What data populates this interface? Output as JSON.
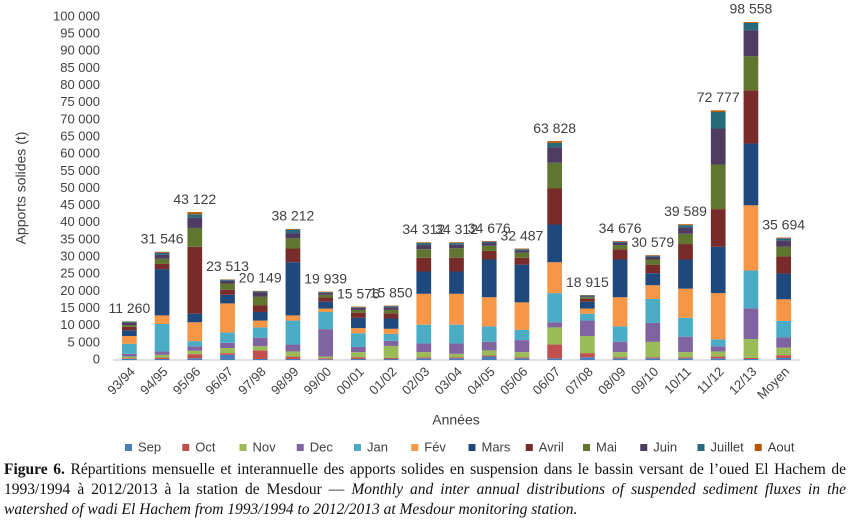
{
  "chart_data": {
    "type": "stacked_bar",
    "y_label": "Apports solides (t)",
    "x_label": "Années",
    "categories": [
      "93/94",
      "94/95",
      "95/96",
      "96/97",
      "97/98",
      "98/99",
      "99/00",
      "00/01",
      "01/02",
      "02/03",
      "03/04",
      "04/05",
      "05/06",
      "06/07",
      "07/08",
      "08/09",
      "09/10",
      "10/11",
      "11/12",
      "12/13",
      "Moyen"
    ],
    "ylim": [
      0,
      100000
    ],
    "yticks": [
      0,
      {
        "value": 5000,
        "label": "5 000"
      },
      {
        "value": 10000,
        "label": "10 000"
      },
      {
        "value": 15000,
        "label": "15 000"
      },
      {
        "value": 20000,
        "label": "20 000"
      },
      {
        "value": 25000,
        "label": "25 000"
      },
      {
        "value": 30000,
        "label": "30 000"
      },
      {
        "value": 35000,
        "label": "35 000"
      },
      {
        "value": 40000,
        "label": "40 000"
      },
      {
        "value": 45000,
        "label": "45 000"
      },
      {
        "value": 50000,
        "label": "50 000"
      },
      {
        "value": 55000,
        "label": "55 000"
      },
      {
        "value": 60000,
        "label": "60 000"
      },
      {
        "value": 65000,
        "label": "65 000"
      },
      {
        "value": 70000,
        "label": "70 000"
      },
      {
        "value": 75000,
        "label": "75 000"
      },
      {
        "value": 80000,
        "label": "80 000"
      },
      {
        "value": 85000,
        "label": "85 000"
      },
      {
        "value": 90000,
        "label": "90 000"
      },
      {
        "value": 95000,
        "label": "95 000"
      },
      {
        "value": 100000,
        "label": "100 000"
      }
    ],
    "totals": [
      11260,
      31546,
      43122,
      23513,
      20149,
      38212,
      19939,
      15576,
      15850,
      34312,
      34312,
      34676,
      32487,
      63828,
      18915,
      34676,
      30579,
      39589,
      72777,
      98558,
      35694
    ],
    "total_labels": [
      "11 260",
      "31 546",
      "43 122",
      "23 513",
      "20 149",
      "38 212",
      "19 939",
      "15 576",
      "15 850",
      "34 312",
      "34 312",
      "34 676",
      "32 487",
      "63 828",
      "18 915",
      "34 676",
      "30 579",
      "39 589",
      "72 777",
      "98 558",
      "35 694"
    ],
    "legend": "bottom",
    "series": [
      {
        "name": "Sep",
        "color": "#4a7ebb",
        "values": [
          300,
          300,
          500,
          1500,
          300,
          300,
          200,
          300,
          300,
          500,
          500,
          1000,
          500,
          500,
          800,
          500,
          500,
          500,
          500,
          300,
          600
        ]
      },
      {
        "name": "Oct",
        "color": "#c0504d",
        "values": [
          200,
          400,
          1200,
          500,
          2500,
          700,
          300,
          500,
          300,
          300,
          300,
          300,
          300,
          4000,
          1200,
          300,
          300,
          300,
          500,
          300,
          800
        ]
      },
      {
        "name": "Nov",
        "color": "#9bbb59",
        "values": [
          500,
          800,
          1000,
          1500,
          1200,
          1500,
          500,
          1500,
          3500,
          1500,
          1000,
          1500,
          1500,
          5000,
          5000,
          1500,
          4500,
          1500,
          1500,
          5500,
          2200
        ]
      },
      {
        "name": "Dec",
        "color": "#8064a2",
        "values": [
          800,
          1000,
          1300,
          1500,
          2500,
          2000,
          8000,
          1500,
          1500,
          2500,
          3000,
          2500,
          3500,
          1500,
          4500,
          3000,
          5500,
          4500,
          1500,
          9000,
          3000
        ]
      },
      {
        "name": "Jan",
        "color": "#4bacc6",
        "values": [
          2900,
          8000,
          1500,
          3000,
          3000,
          7000,
          5000,
          4000,
          2000,
          5500,
          5500,
          4500,
          3000,
          8500,
          2000,
          4500,
          7000,
          5500,
          2000,
          11000,
          4800
        ]
      },
      {
        "name": "Fév",
        "color": "#f79646",
        "values": [
          2300,
          2500,
          5500,
          8500,
          2000,
          1500,
          1000,
          1500,
          1500,
          9000,
          9000,
          8500,
          8000,
          9000,
          1500,
          8500,
          4000,
          8500,
          13500,
          19000,
          6300
        ]
      },
      {
        "name": "Mars",
        "color": "#1f497d",
        "values": [
          1700,
          13500,
          2500,
          2500,
          2500,
          15500,
          2000,
          3000,
          3000,
          6500,
          6500,
          11000,
          11000,
          11000,
          2000,
          11000,
          3500,
          8500,
          13500,
          18000,
          7500
        ]
      },
      {
        "name": "Avril",
        "color": "#772c2a",
        "values": [
          1000,
          1500,
          19500,
          1500,
          2000,
          4000,
          1200,
          1500,
          1500,
          4000,
          4000,
          2500,
          2000,
          10500,
          800,
          3000,
          2500,
          4500,
          11000,
          15500,
          5000
        ]
      },
      {
        "name": "Mai",
        "color": "#5f7530",
        "values": [
          500,
          1500,
          5500,
          1800,
          2500,
          3000,
          800,
          800,
          1000,
          2500,
          2800,
          1500,
          1500,
          7500,
          500,
          1200,
          1500,
          3000,
          13000,
          10000,
          2800
        ]
      },
      {
        "name": "Juin",
        "color": "#4d3b62",
        "values": [
          800,
          1200,
          3000,
          800,
          1200,
          1500,
          600,
          600,
          800,
          1200,
          1000,
          800,
          600,
          4500,
          300,
          700,
          800,
          1800,
          10500,
          7500,
          1800
        ]
      },
      {
        "name": "Juillet",
        "color": "#276a7c",
        "values": [
          200,
          600,
          1000,
          300,
          300,
          1000,
          200,
          200,
          300,
          600,
          500,
          400,
          400,
          1300,
          200,
          300,
          300,
          700,
          4800,
          2200,
          700
        ]
      },
      {
        "name": "Aout",
        "color": "#b65708",
        "values": [
          60,
          246,
          622,
          113,
          149,
          212,
          139,
          176,
          150,
          212,
          212,
          176,
          187,
          528,
          115,
          176,
          179,
          289,
          477,
          258,
          194
        ]
      }
    ]
  },
  "caption": {
    "label": "Figure 6.",
    "french": "Répartitions mensuelle et interannuelle des apports solides en suspension dans le bassin versant de l’oued El Hachem de 1993/1994 à 2012/2013 à la station de Mesdour —",
    "english": "Monthly and inter annual distributions of suspended sediment fluxes in the watershed of wadi El Hachem from 1993/1994 to 2012/2013 at Mesdour monitoring station."
  }
}
